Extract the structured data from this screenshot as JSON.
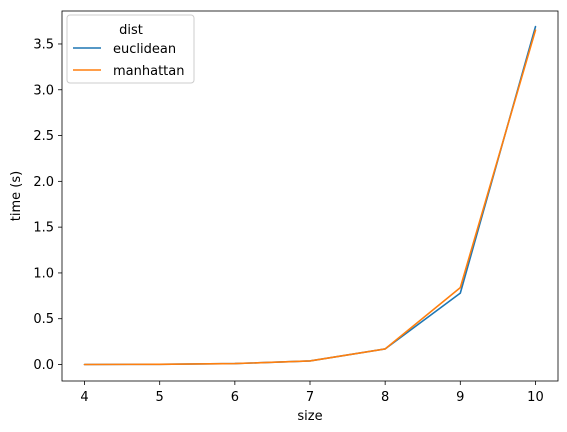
{
  "chart_data": {
    "type": "line",
    "title": "",
    "xlabel": "size",
    "ylabel": "time (s)",
    "x": [
      4,
      5,
      6,
      7,
      8,
      9,
      10
    ],
    "xticks": [
      4,
      5,
      6,
      7,
      8,
      9,
      10
    ],
    "yticks": [
      "0.0",
      "0.5",
      "1.0",
      "1.5",
      "2.0",
      "2.5",
      "3.0",
      "3.5"
    ],
    "xlim": [
      3.7,
      10.3
    ],
    "ylim": [
      -0.18,
      3.86
    ],
    "grid": false,
    "legend": {
      "title": "dist",
      "placement": "top-left"
    },
    "series": [
      {
        "name": "euclidean",
        "color": "#1f77b4",
        "values": [
          0.0,
          0.002,
          0.01,
          0.04,
          0.17,
          0.78,
          3.69
        ]
      },
      {
        "name": "manhattan",
        "color": "#ff7f0e",
        "values": [
          0.0,
          0.002,
          0.01,
          0.04,
          0.17,
          0.84,
          3.65
        ]
      }
    ]
  }
}
